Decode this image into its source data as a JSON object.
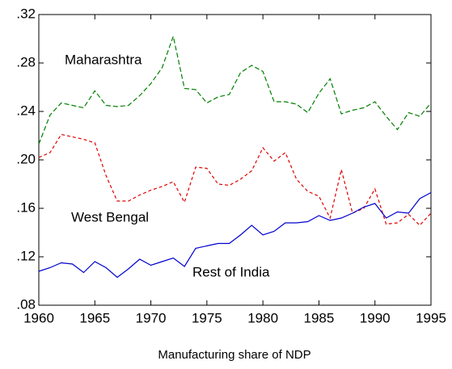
{
  "chart_data": {
    "type": "line",
    "x_label": "Manufacturing share of NDP",
    "x": [
      1960,
      1961,
      1962,
      1963,
      1964,
      1965,
      1966,
      1967,
      1968,
      1969,
      1970,
      1971,
      1972,
      1973,
      1974,
      1975,
      1976,
      1977,
      1978,
      1979,
      1980,
      1981,
      1982,
      1983,
      1984,
      1985,
      1986,
      1987,
      1988,
      1989,
      1990,
      1991,
      1992,
      1993,
      1994,
      1995
    ],
    "series": [
      {
        "name": "Maharashtra",
        "color": "#008000",
        "dash": "6,3",
        "values": [
          0.213,
          0.237,
          0.247,
          0.245,
          0.243,
          0.257,
          0.245,
          0.244,
          0.245,
          0.253,
          0.263,
          0.276,
          0.302,
          0.259,
          0.258,
          0.247,
          0.252,
          0.254,
          0.272,
          0.278,
          0.273,
          0.248,
          0.248,
          0.246,
          0.239,
          0.255,
          0.267,
          0.238,
          0.241,
          0.243,
          0.248,
          0.236,
          0.225,
          0.239,
          0.236,
          0.247
        ]
      },
      {
        "name": "West Bengal",
        "color": "#e00000",
        "dash": "4,3",
        "values": [
          0.202,
          0.206,
          0.221,
          0.219,
          0.217,
          0.214,
          0.187,
          0.166,
          0.166,
          0.171,
          0.175,
          0.178,
          0.182,
          0.165,
          0.194,
          0.193,
          0.18,
          0.179,
          0.184,
          0.191,
          0.21,
          0.199,
          0.206,
          0.184,
          0.174,
          0.17,
          0.152,
          0.192,
          0.156,
          0.16,
          0.176,
          0.147,
          0.148,
          0.155,
          0.146,
          0.156
        ]
      },
      {
        "name": "Rest of India",
        "color": "#0000d0",
        "dash": "none",
        "values": [
          0.108,
          0.111,
          0.115,
          0.114,
          0.107,
          0.116,
          0.111,
          0.103,
          0.11,
          0.118,
          0.113,
          0.116,
          0.119,
          0.112,
          0.127,
          0.129,
          0.131,
          0.131,
          0.138,
          0.146,
          0.138,
          0.141,
          0.148,
          0.148,
          0.149,
          0.154,
          0.15,
          0.152,
          0.156,
          0.161,
          0.164,
          0.152,
          0.157,
          0.156,
          0.168,
          0.173
        ]
      }
    ],
    "xlim": [
      1960,
      1995
    ],
    "xticks": [
      1960,
      1965,
      1970,
      1975,
      1980,
      1985,
      1990,
      1995
    ],
    "ylim": [
      0.08,
      0.32
    ],
    "yticks": [
      {
        "value": 0.08,
        "label": ".08"
      },
      {
        "value": 0.12,
        "label": ".12"
      },
      {
        "value": 0.16,
        "label": ".16"
      },
      {
        "value": 0.2,
        "label": ".20"
      },
      {
        "value": 0.24,
        "label": ".24"
      },
      {
        "value": 0.28,
        "label": ".28"
      },
      {
        "value": 0.32,
        "label": ".32"
      }
    ],
    "grid": false
  }
}
